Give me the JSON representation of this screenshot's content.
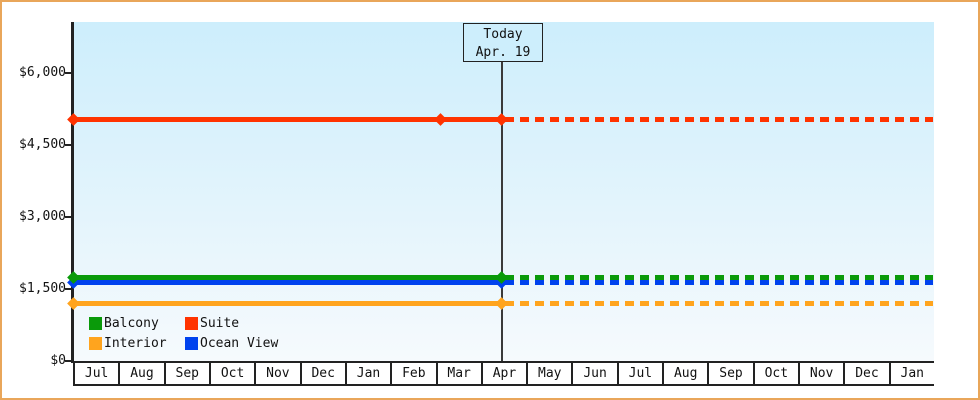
{
  "colors": {
    "frame_border": "#E9A65A",
    "plot_gradient_top": "#CDEEFC",
    "plot_gradient_bottom": "#F6FAFD",
    "axis": "#222222",
    "today_line": "#3A3A3A"
  },
  "chart_data": {
    "type": "line",
    "title": "",
    "xlabel": "",
    "ylabel": "",
    "ylim": [
      0,
      6000
    ],
    "grid": false,
    "y_ticks": [
      0,
      1500,
      3000,
      4500,
      6000
    ],
    "y_tick_labels": [
      "$0",
      "$1,500",
      "$3,000",
      "$4,500",
      "$6,000"
    ],
    "x_categories": [
      "Jul",
      "Aug",
      "Sep",
      "Oct",
      "Nov",
      "Dec",
      "Jan",
      "Feb",
      "Mar",
      "Apr",
      "May",
      "Jun",
      "Jul",
      "Aug",
      "Sep",
      "Oct",
      "Nov",
      "Dec",
      "Jan"
    ],
    "today": {
      "label": "Today",
      "date": "Apr. 19"
    },
    "legend_position": "bottom-left inside plot",
    "series": [
      {
        "name": "Balcony",
        "color": "#0A9A0A",
        "value": 1750,
        "z": 3,
        "solid_before_today": true,
        "dotted_after_today": true,
        "extra_marker": false
      },
      {
        "name": "Suite",
        "color": "#FF3300",
        "value": 5050,
        "z": 4,
        "solid_before_today": true,
        "dotted_after_today": true,
        "extra_marker": true,
        "extra_marker_near": "Mar"
      },
      {
        "name": "Interior",
        "color": "#FFA41E",
        "value": 1200,
        "z": 1,
        "solid_before_today": true,
        "dotted_after_today": true,
        "extra_marker": false
      },
      {
        "name": "Ocean View",
        "color": "#0042EE",
        "value": 1650,
        "z": 2,
        "solid_before_today": true,
        "dotted_after_today": true,
        "extra_marker": false
      }
    ]
  }
}
